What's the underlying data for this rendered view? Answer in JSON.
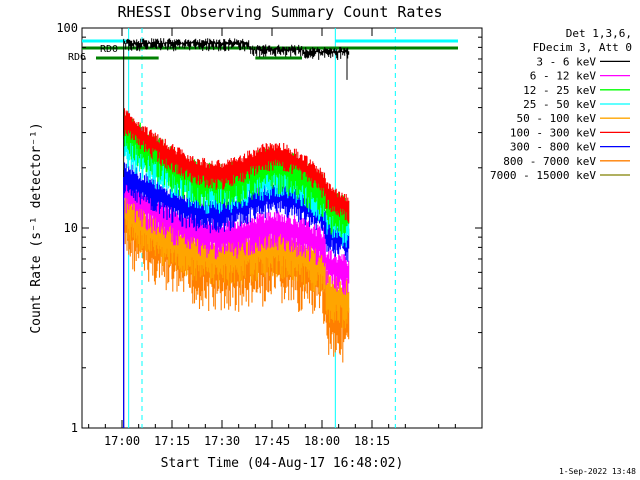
{
  "chart_data": {
    "type": "line",
    "title": "RHESSI Observing Summary Count Rates",
    "xlabel": "Start Time (04-Aug-17 16:48:02)",
    "ylabel": "Count Rate (s⁻¹ detector⁻¹)",
    "y_scale": "log",
    "ylim": [
      1,
      100
    ],
    "y_ticks": [
      "1",
      "10",
      "100"
    ],
    "x_ticks": [
      "17:00",
      "17:15",
      "17:30",
      "17:45",
      "18:00",
      "18:15"
    ],
    "legend_position": "right",
    "legend_header": [
      "Det 1,3,6,",
      "FDecim 3, Att 0"
    ],
    "series": [
      {
        "name": "3 - 6 keV",
        "color": "#000000"
      },
      {
        "name": "6 - 12 keV",
        "color": "#ff00ff"
      },
      {
        "name": "12 - 25 keV",
        "color": "#00ff00"
      },
      {
        "name": "25 - 50 keV",
        "color": "#00ffff"
      },
      {
        "name": "50 - 100 keV",
        "color": "#ffa500"
      },
      {
        "name": "100 - 300 keV",
        "color": "#ff0000"
      },
      {
        "name": "300 - 800 keV",
        "color": "#0000ff"
      },
      {
        "name": "800 - 7000 keV",
        "color": "#ff7f00"
      },
      {
        "name": "7000 - 15000 keV",
        "color": "#808000"
      }
    ],
    "annotations": {
      "rd0": "RD0",
      "rd6": "RD6"
    },
    "footer": "1-Sep-2022 13:48"
  }
}
